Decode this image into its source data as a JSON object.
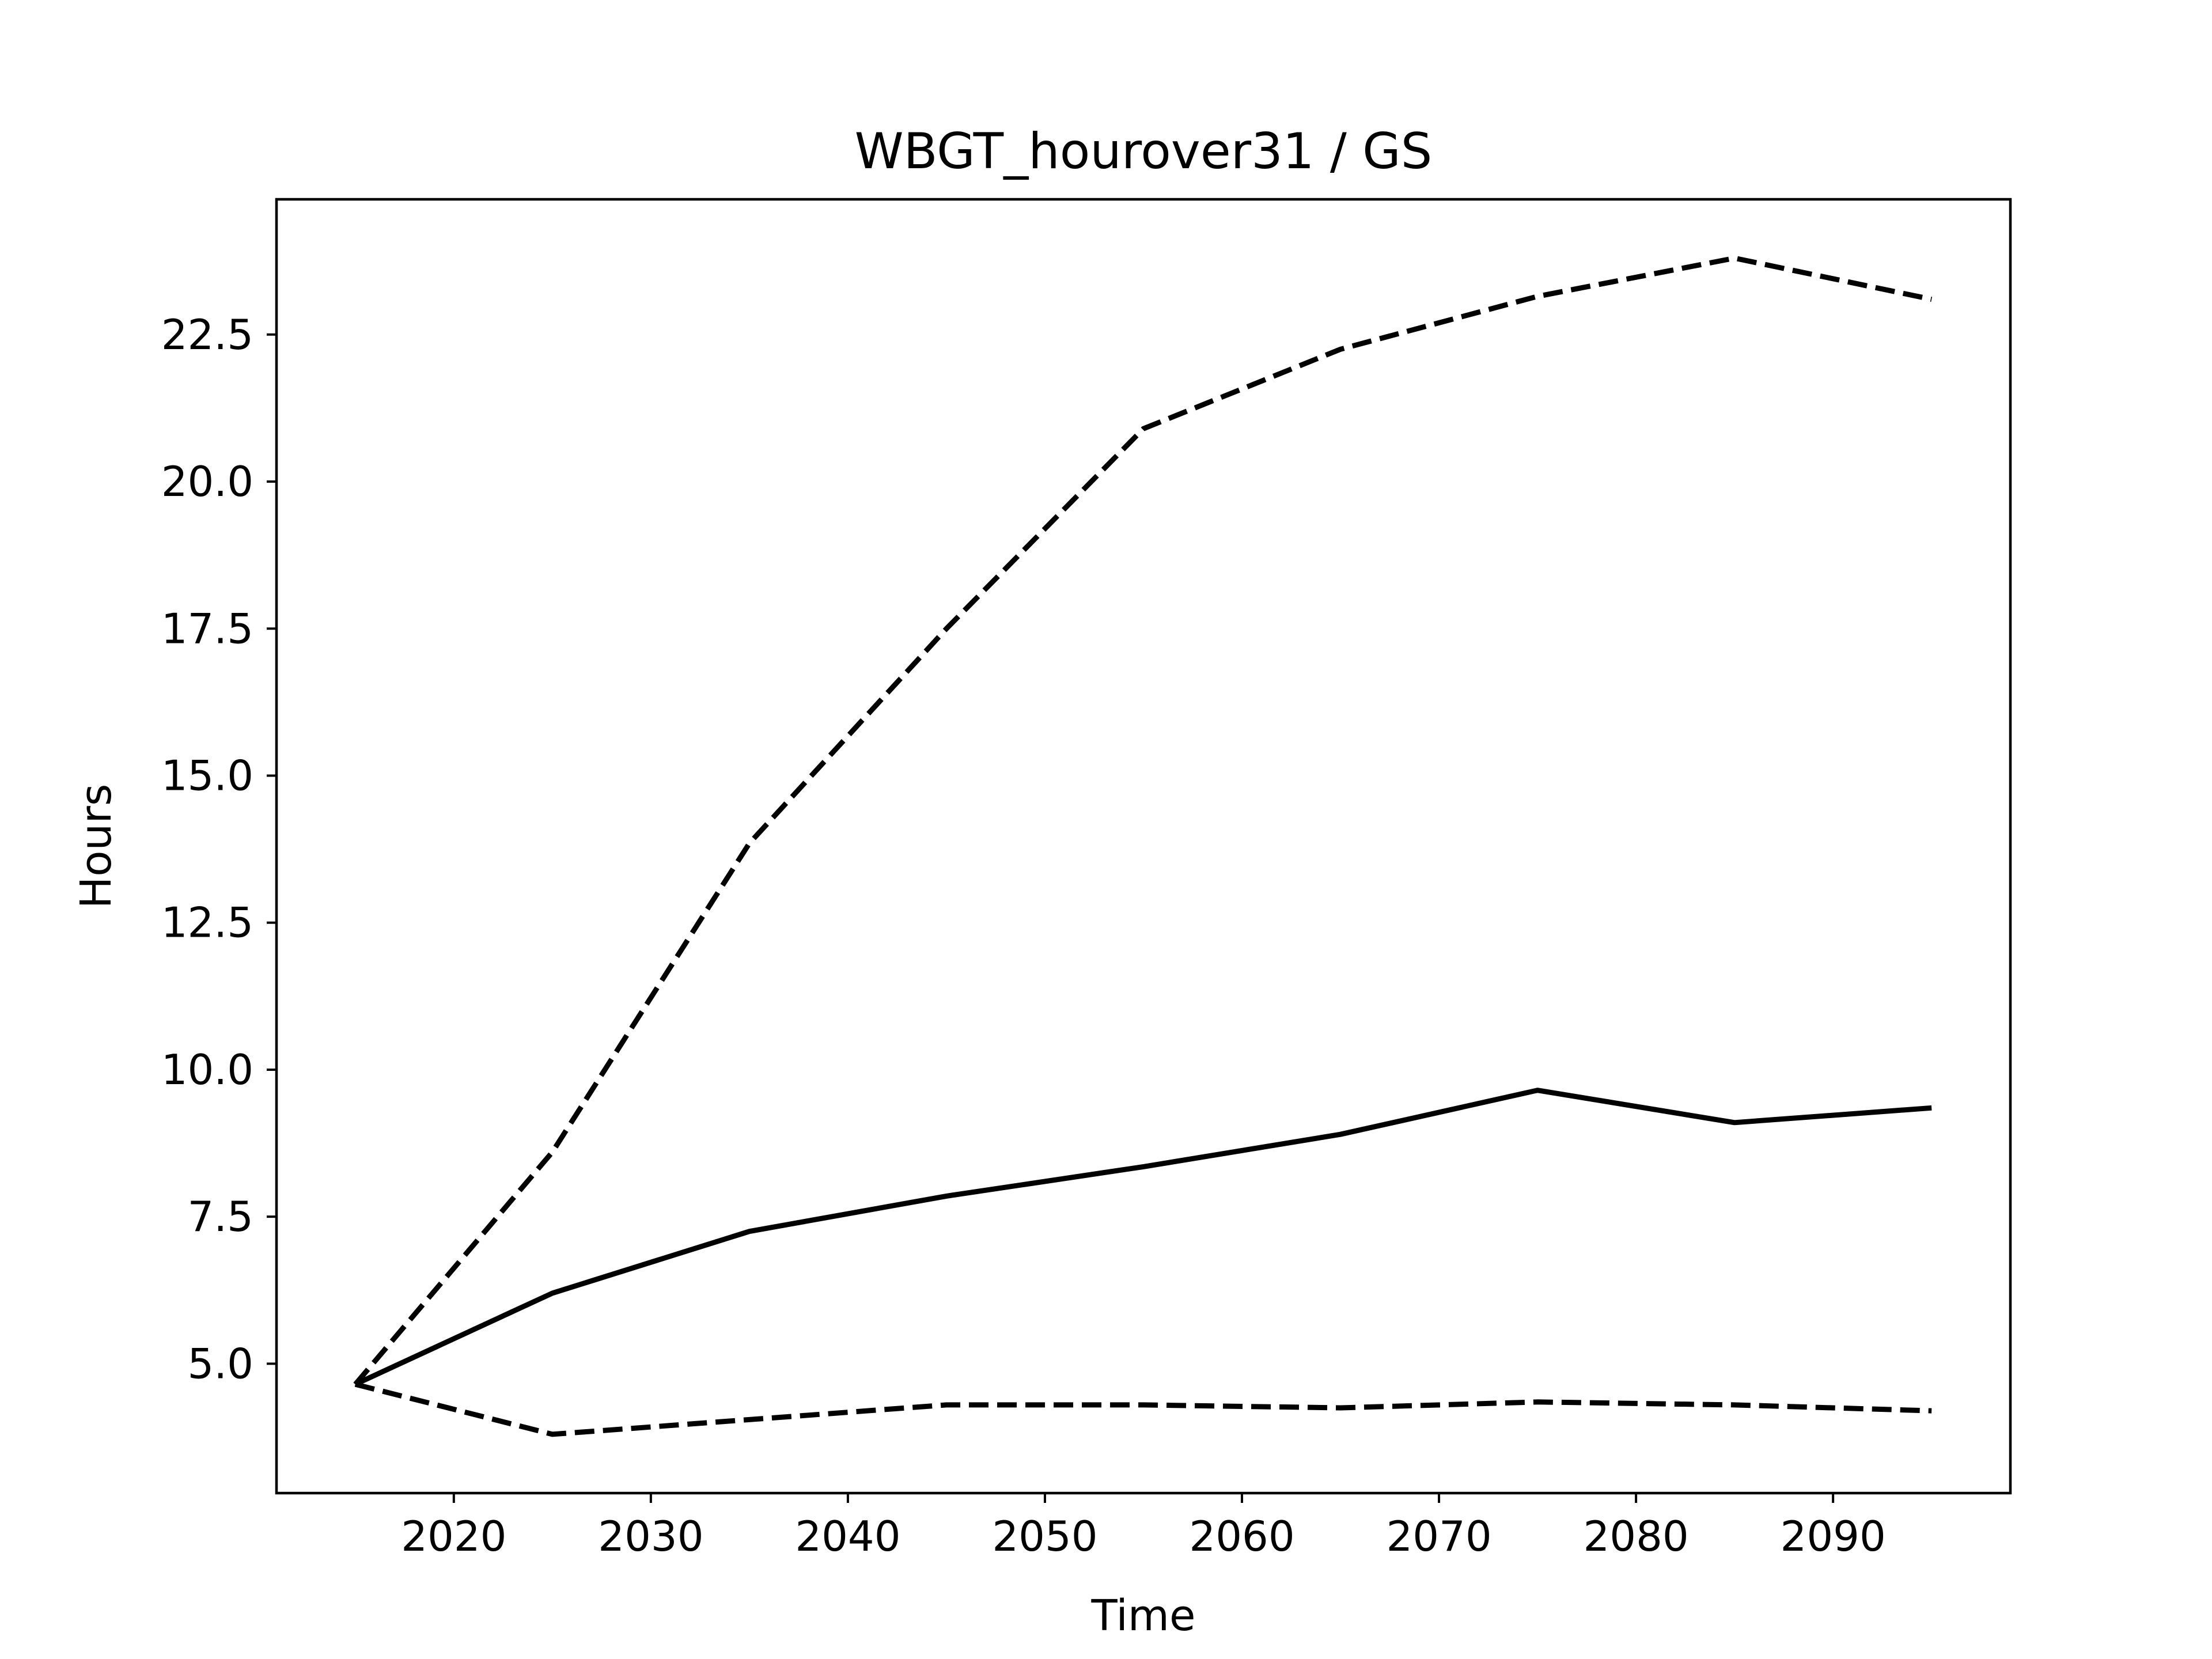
{
  "chart_data": {
    "type": "line",
    "title": "WBGT_hourover31 / GS",
    "xlabel": "Time",
    "ylabel": "Hours",
    "xlim": [
      2011,
      2099
    ],
    "ylim": [
      2.8,
      24.8
    ],
    "xticks": [
      2020,
      2030,
      2040,
      2050,
      2060,
      2070,
      2080,
      2090
    ],
    "yticks": [
      5.0,
      7.5,
      10.0,
      12.5,
      15.0,
      17.5,
      20.0,
      22.5
    ],
    "grid": false,
    "legend": "none",
    "x": [
      2015,
      2025,
      2035,
      2045,
      2055,
      2065,
      2075,
      2085,
      2095
    ],
    "series": [
      {
        "style": "dashed",
        "color": "#000000",
        "values": [
          4.65,
          8.6,
          13.85,
          17.5,
          20.9,
          22.25,
          23.15,
          23.8,
          23.1
        ]
      },
      {
        "style": "solid",
        "color": "#000000",
        "values": [
          4.65,
          6.2,
          7.25,
          7.85,
          8.35,
          8.9,
          9.65,
          9.1,
          9.35
        ]
      },
      {
        "style": "dashed",
        "color": "#000000",
        "values": [
          4.65,
          3.8,
          4.05,
          4.3,
          4.3,
          4.25,
          4.35,
          4.3,
          4.2
        ]
      }
    ]
  }
}
